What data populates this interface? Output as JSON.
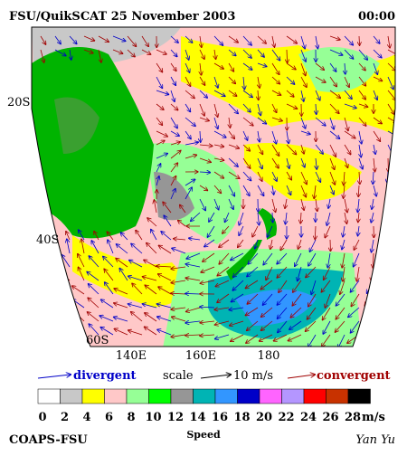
{
  "header": {
    "title": "FSU/QuikSCAT 25 November 2003",
    "time": "00:00"
  },
  "map": {
    "lat_labels": [
      "20S",
      "40S",
      "60S"
    ],
    "lon_labels": [
      "140E",
      "160E",
      "180"
    ]
  },
  "legend": {
    "divergent": "divergent",
    "scale": "scale",
    "scale_value": "10 m/s",
    "convergent": "convergent",
    "divergent_color": "#0000c8",
    "convergent_color": "#a00000"
  },
  "colorbar": {
    "colors": [
      "#ffffff",
      "#c8c8c8",
      "#ffff00",
      "#ffc8c8",
      "#96ff96",
      "#00ff00",
      "#969696",
      "#00b4b4",
      "#3296ff",
      "#0000c8",
      "#ff64ff",
      "#b496ff",
      "#ff0000",
      "#c83200",
      "#000000"
    ],
    "ticks": [
      0,
      2,
      4,
      6,
      8,
      10,
      12,
      14,
      16,
      18,
      20,
      22,
      24,
      26,
      28
    ],
    "unit": "m/s"
  },
  "footer": {
    "left": "COAPS-FSU",
    "center": "Speed",
    "right": "Yan Yu"
  }
}
